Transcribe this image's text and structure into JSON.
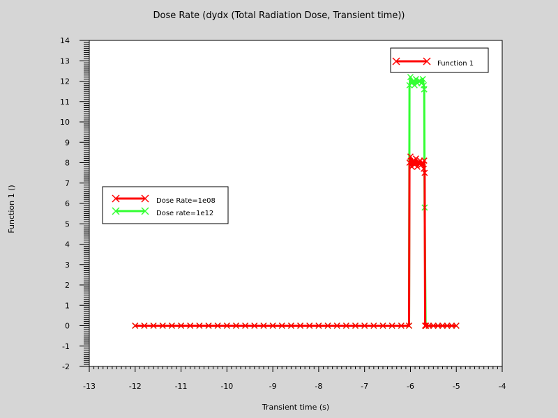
{
  "chart_data": {
    "type": "line",
    "title": "Dose Rate (dydx (Total Radiation Dose, Transient time))",
    "xlabel": "Transient time (s)",
    "ylabel": "Function 1 ()",
    "xlim": [
      -13,
      -4
    ],
    "ylim": [
      -2,
      14
    ],
    "x_ticks": [
      -13,
      -12,
      -11,
      -10,
      -9,
      -8,
      -7,
      -6,
      -5,
      -4
    ],
    "y_ticks": [
      -2,
      -1,
      0,
      1,
      2,
      3,
      4,
      5,
      6,
      7,
      8,
      9,
      10,
      11,
      12,
      13,
      14
    ],
    "grid": false,
    "series": [
      {
        "name": "Dose Rate=1e08",
        "color": "#ff0000",
        "marker": "x",
        "x": [
          -12.0,
          -11.8,
          -11.6,
          -11.4,
          -11.2,
          -11.0,
          -10.8,
          -10.6,
          -10.4,
          -10.2,
          -10.0,
          -9.8,
          -9.6,
          -9.4,
          -9.2,
          -9.0,
          -8.8,
          -8.6,
          -8.4,
          -8.2,
          -8.0,
          -7.8,
          -7.6,
          -7.4,
          -7.2,
          -7.0,
          -6.8,
          -6.6,
          -6.4,
          -6.2,
          -6.03,
          -6.02,
          -6.0,
          -5.97,
          -5.94,
          -5.91,
          -5.88,
          -5.85,
          -5.82,
          -5.79,
          -5.76,
          -5.73,
          -5.71,
          -5.7,
          -5.69,
          -5.68,
          -5.66,
          -5.6,
          -5.5,
          -5.4,
          -5.3,
          -5.2,
          -5.1,
          -5.0
        ],
        "values": [
          0,
          0,
          0,
          0,
          0,
          0,
          0,
          0,
          0,
          0,
          0,
          0,
          0,
          0,
          0,
          0,
          0,
          0,
          0,
          0,
          0,
          0,
          0,
          0,
          0,
          0,
          0,
          0,
          0,
          0,
          0,
          8.0,
          8.3,
          7.8,
          8.1,
          7.9,
          8.2,
          7.8,
          8.0,
          8.1,
          7.9,
          8.0,
          7.7,
          8.1,
          7.5,
          0,
          0,
          0,
          0,
          0,
          0,
          0,
          0,
          0
        ]
      },
      {
        "name": "Dose rate=1e12",
        "color": "#33ff33",
        "marker": "x",
        "x": [
          -12.0,
          -11.8,
          -11.6,
          -11.4,
          -11.2,
          -11.0,
          -10.8,
          -10.6,
          -10.4,
          -10.2,
          -10.0,
          -9.8,
          -9.6,
          -9.4,
          -9.2,
          -9.0,
          -8.8,
          -8.6,
          -8.4,
          -8.2,
          -8.0,
          -7.8,
          -7.6,
          -7.4,
          -7.2,
          -7.0,
          -6.8,
          -6.6,
          -6.4,
          -6.2,
          -6.03,
          -6.02,
          -6.0,
          -5.97,
          -5.94,
          -5.91,
          -5.88,
          -5.85,
          -5.82,
          -5.79,
          -5.76,
          -5.73,
          -5.71,
          -5.7,
          -5.69,
          -5.67,
          -5.66,
          -5.6,
          -5.5,
          -5.4,
          -5.3,
          -5.2,
          -5.1,
          -5.0
        ],
        "values": [
          0,
          0,
          0,
          0,
          0,
          0,
          0,
          0,
          0,
          0,
          0,
          0,
          0,
          0,
          0,
          0,
          0,
          0,
          0,
          0,
          0,
          0,
          0,
          0,
          0,
          0,
          0,
          0,
          0,
          0,
          0,
          11.8,
          12.2,
          11.9,
          12.0,
          11.8,
          12.1,
          11.9,
          12.0,
          12.0,
          11.9,
          12.1,
          11.8,
          11.6,
          5.8,
          0,
          0,
          0,
          0,
          0,
          0,
          0,
          0,
          0
        ]
      }
    ],
    "legends": [
      {
        "placement": "top-right",
        "entries": [
          {
            "label": "Function 1",
            "color": "#ff0000"
          }
        ]
      },
      {
        "placement": "center-left",
        "entries": [
          {
            "label": "Dose Rate=1e08",
            "color": "#ff0000"
          },
          {
            "label": "Dose rate=1e12",
            "color": "#33ff33"
          }
        ]
      }
    ]
  }
}
